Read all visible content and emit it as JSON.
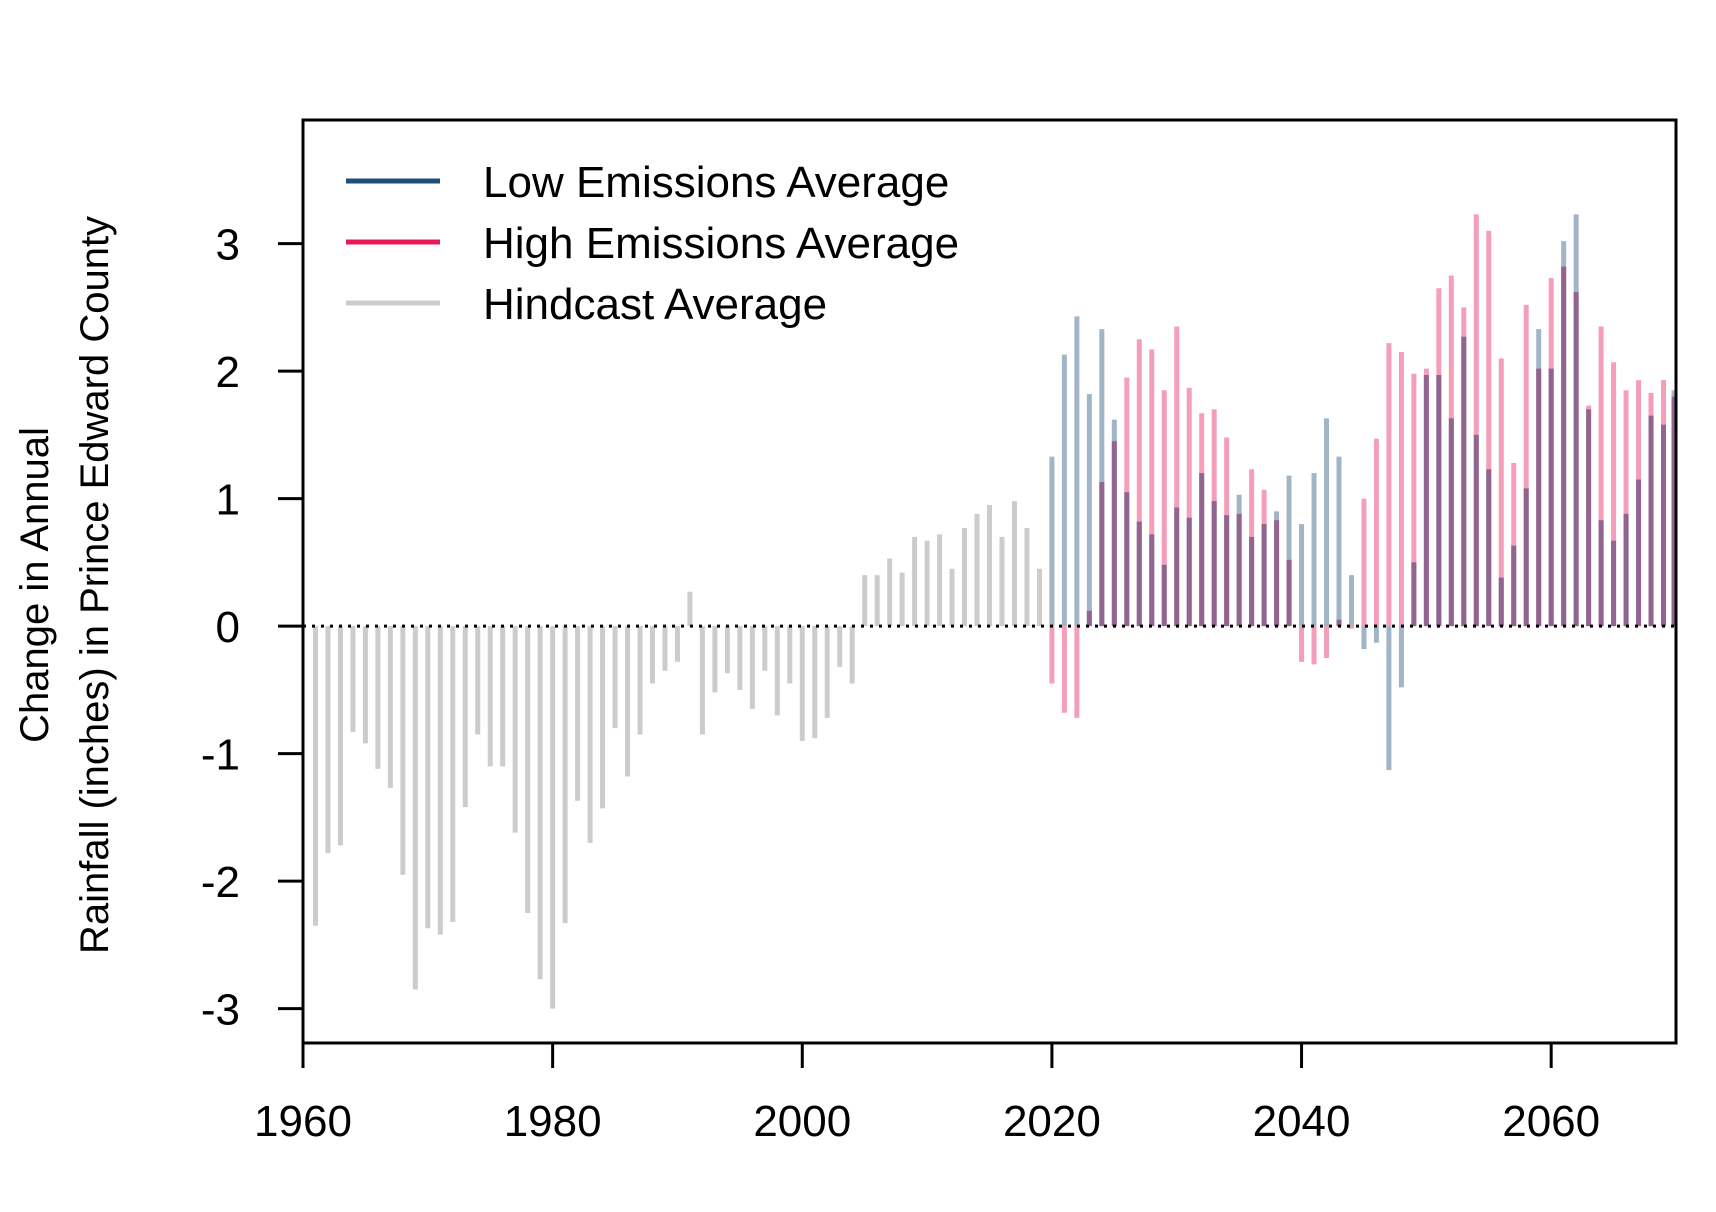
{
  "chart_data": {
    "type": "bar",
    "title": "",
    "xlabel": "",
    "ylabel": [
      "Change in Annual",
      "Rainfall (inches) in Prince Edward County"
    ],
    "xlim": [
      1960,
      2070
    ],
    "ylim": [
      -3.27,
      3.97
    ],
    "x_ticks": [
      1960,
      1980,
      2000,
      2020,
      2040,
      2060
    ],
    "y_ticks": [
      -3,
      -2,
      -1,
      0,
      1,
      2,
      3
    ],
    "grid": false,
    "legend_position": "top-left",
    "legend": [
      {
        "label": "Low Emissions Average",
        "color": "#1f4e79"
      },
      {
        "label": "High Emissions Average",
        "color": "#e8185a"
      },
      {
        "label": "Hindcast Average",
        "color": "#cccccc"
      }
    ],
    "series": [
      {
        "name": "Hindcast Average",
        "color": "#cccccc",
        "x": [
          1961,
          1962,
          1963,
          1964,
          1965,
          1966,
          1967,
          1968,
          1969,
          1970,
          1971,
          1972,
          1973,
          1974,
          1975,
          1976,
          1977,
          1978,
          1979,
          1980,
          1981,
          1982,
          1983,
          1984,
          1985,
          1986,
          1987,
          1988,
          1989,
          1990,
          1991,
          1992,
          1993,
          1994,
          1995,
          1996,
          1997,
          1998,
          1999,
          2000,
          2001,
          2002,
          2003,
          2004,
          2005,
          2006,
          2007,
          2008,
          2009,
          2010,
          2011,
          2012,
          2013,
          2014,
          2015,
          2016,
          2017,
          2018,
          2019
        ],
        "values": [
          -2.35,
          -1.78,
          -1.72,
          -0.83,
          -0.92,
          -1.12,
          -1.27,
          -1.95,
          -2.85,
          -2.37,
          -2.42,
          -2.32,
          -1.42,
          -0.85,
          -1.1,
          -1.1,
          -1.62,
          -2.25,
          -2.77,
          -3.0,
          -2.33,
          -1.37,
          -1.7,
          -1.43,
          -0.8,
          -1.18,
          -0.85,
          -0.45,
          -0.35,
          -0.28,
          0.27,
          -0.85,
          -0.52,
          -0.37,
          -0.5,
          -0.65,
          -0.35,
          -0.7,
          -0.45,
          -0.9,
          -0.88,
          -0.72,
          -0.32,
          -0.45,
          0.4,
          0.4,
          0.53,
          0.42,
          0.7,
          0.67,
          0.72,
          0.45,
          0.77,
          0.88,
          0.95,
          0.7,
          0.98,
          0.77,
          0.45
        ]
      },
      {
        "name": "Low Emissions Average",
        "color": "#1f4e79",
        "x": [
          2020,
          2021,
          2022,
          2023,
          2024,
          2025,
          2026,
          2027,
          2028,
          2029,
          2030,
          2031,
          2032,
          2033,
          2034,
          2035,
          2036,
          2037,
          2038,
          2039,
          2040,
          2041,
          2042,
          2043,
          2044,
          2045,
          2046,
          2047,
          2048,
          2049,
          2050,
          2051,
          2052,
          2053,
          2054,
          2055,
          2056,
          2057,
          2058,
          2059,
          2060,
          2061,
          2062,
          2063,
          2064,
          2065,
          2066,
          2067,
          2068,
          2069,
          2070
        ],
        "values": [
          1.33,
          2.13,
          2.43,
          1.82,
          2.33,
          1.62,
          1.05,
          0.82,
          0.72,
          0.48,
          0.93,
          0.85,
          1.2,
          0.98,
          0.87,
          1.03,
          0.7,
          0.8,
          0.9,
          1.18,
          0.8,
          1.2,
          1.63,
          1.33,
          0.4,
          -0.18,
          -0.13,
          -1.13,
          -0.48,
          0.5,
          1.97,
          1.97,
          1.63,
          2.27,
          1.5,
          1.23,
          0.38,
          0.63,
          1.08,
          2.33,
          2.02,
          3.02,
          3.23,
          1.7,
          0.83,
          0.67,
          0.88,
          1.15,
          1.65,
          1.58,
          1.85
        ]
      },
      {
        "name": "High Emissions Average",
        "color": "#e8185a",
        "x": [
          2020,
          2021,
          2022,
          2023,
          2024,
          2025,
          2026,
          2027,
          2028,
          2029,
          2030,
          2031,
          2032,
          2033,
          2034,
          2035,
          2036,
          2037,
          2038,
          2039,
          2040,
          2041,
          2042,
          2043,
          2044,
          2045,
          2046,
          2047,
          2048,
          2049,
          2050,
          2051,
          2052,
          2053,
          2054,
          2055,
          2056,
          2057,
          2058,
          2059,
          2060,
          2061,
          2062,
          2063,
          2064,
          2065,
          2066,
          2067,
          2068,
          2069,
          2070
        ],
        "values": [
          -0.45,
          -0.68,
          -0.72,
          0.12,
          1.13,
          1.45,
          1.95,
          2.25,
          2.17,
          1.85,
          2.35,
          1.87,
          1.67,
          1.7,
          1.48,
          0.88,
          1.23,
          1.07,
          0.83,
          0.52,
          -0.28,
          -0.3,
          -0.25,
          0.05,
          -0.02,
          1.0,
          1.47,
          2.22,
          2.15,
          1.98,
          2.02,
          2.65,
          2.75,
          2.5,
          3.23,
          3.1,
          2.1,
          1.28,
          2.52,
          2.02,
          2.73,
          2.82,
          2.62,
          1.73,
          2.35,
          2.07,
          1.85,
          1.93,
          1.83,
          1.93,
          1.8
        ]
      }
    ]
  }
}
